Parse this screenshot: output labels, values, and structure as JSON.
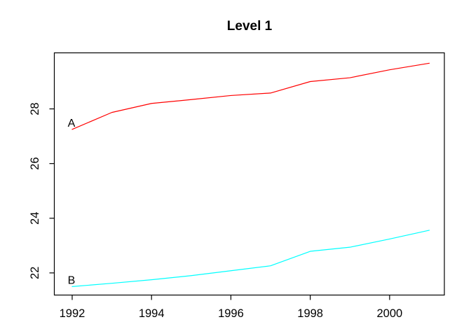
{
  "chart_data": {
    "type": "line",
    "title": "Level 1",
    "xlabel": "",
    "ylabel": "",
    "x": [
      1992,
      1993,
      1994,
      1995,
      1996,
      1997,
      1998,
      1999,
      2000,
      2001
    ],
    "series": [
      {
        "name": "A",
        "point_label": "A",
        "color": "#FF0000",
        "values": [
          27.25,
          27.87,
          28.2,
          28.34,
          28.49,
          28.58,
          29.0,
          29.14,
          29.43,
          29.67
        ]
      },
      {
        "name": "B",
        "point_label": "B",
        "color": "#00FFFF",
        "values": [
          21.5,
          21.62,
          21.75,
          21.9,
          22.08,
          22.26,
          22.79,
          22.94,
          23.24,
          23.56
        ]
      }
    ],
    "x_ticks": [
      1992,
      1994,
      1996,
      1998,
      2000
    ],
    "y_ticks": [
      22,
      24,
      26,
      28
    ],
    "xlim": [
      1991.55,
      2001.38
    ],
    "ylim": [
      21.19,
      30.05
    ],
    "grid": false,
    "legend": "none",
    "frame_color": "#000000",
    "text_color": "#000000",
    "background": "#FFFFFF"
  }
}
